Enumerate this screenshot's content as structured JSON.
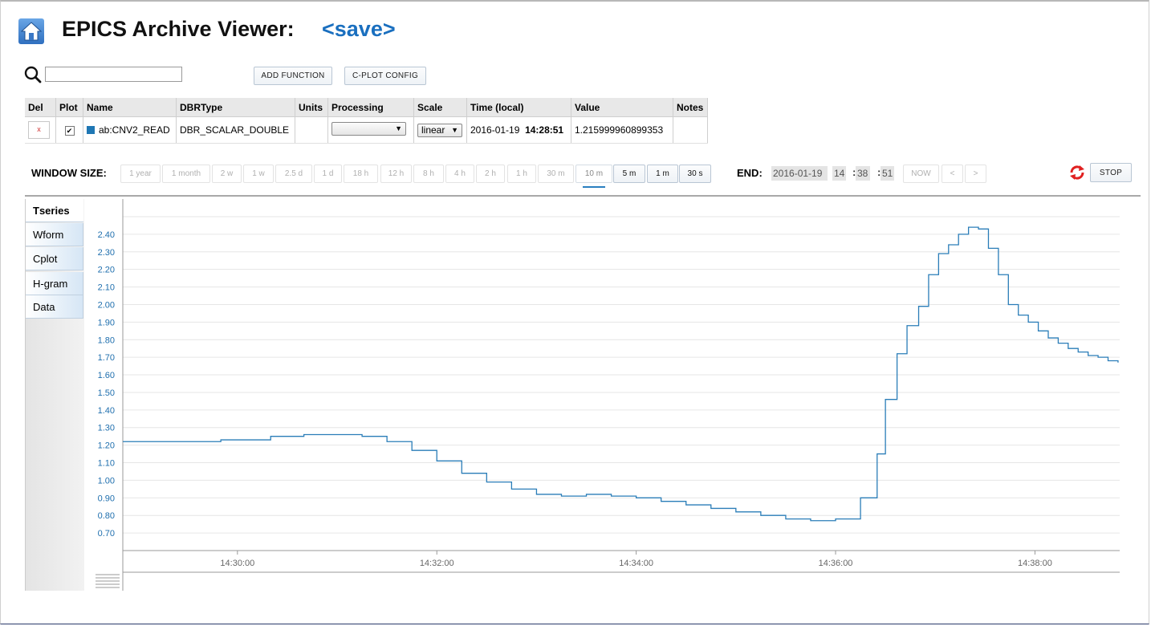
{
  "header": {
    "title": "EPICS Archive Viewer:",
    "save_link": "<save>"
  },
  "toolbar": {
    "search_value": "",
    "add_function_label": "ADD FUNCTION",
    "cplot_config_label": "C-PLOT CONFIG"
  },
  "pv_table": {
    "columns": [
      "Del",
      "Plot",
      "Name",
      "DBRType",
      "Units",
      "Processing",
      "Scale",
      "Time (local)",
      "Value",
      "Notes"
    ],
    "row": {
      "del_label": "x",
      "plot_checked": "✔",
      "name": "ab:CNV2_READ",
      "dbr_type": "DBR_SCALAR_DOUBLE",
      "units": "",
      "processing": "",
      "scale": "linear",
      "time_date": "2016-01-19",
      "time_clock": "14:28:51",
      "value": "1.215999960899353",
      "notes": "",
      "color": "#1f77b4"
    }
  },
  "window_size": {
    "label": "WINDOW SIZE:",
    "buttons": [
      "1 year",
      "1 month",
      "2 w",
      "1 w",
      "2.5 d",
      "1 d",
      "18 h",
      "12 h",
      "8 h",
      "4 h",
      "2 h",
      "1 h",
      "30 m",
      "10 m",
      "5 m",
      "1 m",
      "30 s"
    ],
    "selected": "10 m"
  },
  "end_time": {
    "label": "END:",
    "date": "2016-01-19",
    "hour": "14",
    "minute": "38",
    "second": "51",
    "now_label": "NOW",
    "prev_label": "<",
    "next_label": ">"
  },
  "controls": {
    "stop_label": "STOP",
    "refresh_icon": "refresh-icon"
  },
  "plot_tabs": {
    "items": [
      {
        "main": "T",
        "sub": "series"
      },
      {
        "main": "W",
        "sub": "form"
      },
      {
        "main": "C",
        "sub": "plot"
      },
      {
        "main": "H-gram",
        "sub": ""
      },
      {
        "main": "Data",
        "sub": ""
      }
    ],
    "active_index": 0
  },
  "chart_data": {
    "type": "line",
    "step": true,
    "series": [
      {
        "color": "#2a7db8",
        "x": [
          "14:28:51",
          "14:29:20",
          "14:29:50",
          "14:30:20",
          "14:30:40",
          "14:31:00",
          "14:31:15",
          "14:31:30",
          "14:31:45",
          "14:32:00",
          "14:32:15",
          "14:32:30",
          "14:32:45",
          "14:33:00",
          "14:33:15",
          "14:33:30",
          "14:33:45",
          "14:34:00",
          "14:34:15",
          "14:34:30",
          "14:34:45",
          "14:35:00",
          "14:35:15",
          "14:35:30",
          "14:35:45",
          "14:36:00",
          "14:36:15",
          "14:36:25",
          "14:36:30",
          "14:36:37",
          "14:36:43",
          "14:36:50",
          "14:36:56",
          "14:37:02",
          "14:37:08",
          "14:37:14",
          "14:37:20",
          "14:37:26",
          "14:37:32",
          "14:37:38",
          "14:37:44",
          "14:37:50",
          "14:37:56",
          "14:38:02",
          "14:38:08",
          "14:38:14",
          "14:38:20",
          "14:38:26",
          "14:38:32",
          "14:38:38",
          "14:38:44",
          "14:38:50"
        ],
        "y": [
          1.22,
          1.22,
          1.23,
          1.25,
          1.26,
          1.26,
          1.25,
          1.22,
          1.17,
          1.11,
          1.04,
          0.99,
          0.95,
          0.92,
          0.91,
          0.92,
          0.91,
          0.9,
          0.88,
          0.86,
          0.84,
          0.82,
          0.8,
          0.78,
          0.77,
          0.78,
          0.9,
          1.15,
          1.46,
          1.72,
          1.88,
          1.99,
          2.17,
          2.29,
          2.34,
          2.4,
          2.44,
          2.43,
          2.32,
          2.17,
          2.0,
          1.94,
          1.9,
          1.85,
          1.81,
          1.78,
          1.75,
          1.73,
          1.71,
          1.7,
          1.68,
          1.67
        ]
      }
    ],
    "yticks": [
      "0.70",
      "0.80",
      "0.90",
      "1.00",
      "1.10",
      "1.20",
      "1.30",
      "1.40",
      "1.50",
      "1.60",
      "1.70",
      "1.80",
      "1.90",
      "2.00",
      "2.10",
      "2.20",
      "2.30",
      "2.40"
    ],
    "ylim": [
      0.6,
      2.5
    ],
    "xticks": [
      "14:30:00",
      "14:32:00",
      "14:34:00",
      "14:36:00",
      "14:38:00"
    ],
    "xlim": [
      "14:28:51",
      "14:38:51"
    ],
    "grid": true
  }
}
